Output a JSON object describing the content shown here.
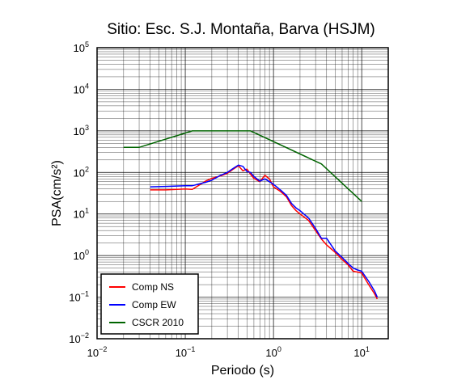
{
  "chart_data": {
    "type": "line",
    "title": "Sitio: Esc. S.J. Montaña, Barva (HSJM)",
    "xlabel": "Periodo (s)",
    "ylabel": "PSA(cm/s²)",
    "xscale": "log",
    "yscale": "log",
    "xlim": [
      0.01,
      20
    ],
    "ylim": [
      0.01,
      100000
    ],
    "grid": true,
    "legend_position": "bottom-left",
    "x_tick_labels": [
      {
        "base": "10",
        "exp": "−2",
        "value": 0.01
      },
      {
        "base": "10",
        "exp": "−1",
        "value": 0.1
      },
      {
        "base": "10",
        "exp": "0",
        "value": 1
      },
      {
        "base": "10",
        "exp": "1",
        "value": 10
      }
    ],
    "y_tick_labels": [
      {
        "base": "10",
        "exp": "−2",
        "value": 0.01
      },
      {
        "base": "10",
        "exp": "−1",
        "value": 0.1
      },
      {
        "base": "10",
        "exp": "0",
        "value": 1
      },
      {
        "base": "10",
        "exp": "1",
        "value": 10
      },
      {
        "base": "10",
        "exp": "2",
        "value": 100
      },
      {
        "base": "10",
        "exp": "3",
        "value": 1000
      },
      {
        "base": "10",
        "exp": "4",
        "value": 10000
      },
      {
        "base": "10",
        "exp": "5",
        "value": 100000
      }
    ],
    "series": [
      {
        "name": "Comp NS",
        "color": "#ff0000",
        "points": [
          [
            0.04,
            38
          ],
          [
            0.06,
            38
          ],
          [
            0.08,
            39
          ],
          [
            0.1,
            40
          ],
          [
            0.12,
            39
          ],
          [
            0.14,
            48
          ],
          [
            0.17,
            62
          ],
          [
            0.2,
            72
          ],
          [
            0.25,
            82
          ],
          [
            0.3,
            95
          ],
          [
            0.35,
            120
          ],
          [
            0.4,
            145
          ],
          [
            0.45,
            110
          ],
          [
            0.5,
            120
          ],
          [
            0.55,
            90
          ],
          [
            0.6,
            72
          ],
          [
            0.7,
            60
          ],
          [
            0.8,
            85
          ],
          [
            0.9,
            70
          ],
          [
            1.0,
            45
          ],
          [
            1.2,
            35
          ],
          [
            1.4,
            26
          ],
          [
            1.6,
            16
          ],
          [
            1.8,
            12
          ],
          [
            2.0,
            10
          ],
          [
            2.5,
            7
          ],
          [
            3.0,
            4
          ],
          [
            3.5,
            2.5
          ],
          [
            4.0,
            1.8
          ],
          [
            5.0,
            1.2
          ],
          [
            6.0,
            0.8
          ],
          [
            7.0,
            0.6
          ],
          [
            8.0,
            0.42
          ],
          [
            9.0,
            0.4
          ],
          [
            10.0,
            0.38
          ],
          [
            12.0,
            0.2
          ],
          [
            14.0,
            0.12
          ],
          [
            15.0,
            0.09
          ]
        ]
      },
      {
        "name": "Comp EW",
        "color": "#0000ff",
        "points": [
          [
            0.04,
            45
          ],
          [
            0.06,
            46
          ],
          [
            0.08,
            47
          ],
          [
            0.1,
            48
          ],
          [
            0.12,
            48
          ],
          [
            0.14,
            52
          ],
          [
            0.17,
            58
          ],
          [
            0.2,
            65
          ],
          [
            0.25,
            85
          ],
          [
            0.3,
            100
          ],
          [
            0.35,
            125
          ],
          [
            0.4,
            150
          ],
          [
            0.45,
            140
          ],
          [
            0.5,
            105
          ],
          [
            0.55,
            100
          ],
          [
            0.6,
            80
          ],
          [
            0.7,
            62
          ],
          [
            0.8,
            70
          ],
          [
            0.9,
            60
          ],
          [
            1.0,
            52
          ],
          [
            1.2,
            38
          ],
          [
            1.4,
            28
          ],
          [
            1.6,
            18
          ],
          [
            1.8,
            14
          ],
          [
            2.0,
            12
          ],
          [
            2.5,
            8
          ],
          [
            3.0,
            4.5
          ],
          [
            3.5,
            2.6
          ],
          [
            4.0,
            2.6
          ],
          [
            5.0,
            1.3
          ],
          [
            6.0,
            0.9
          ],
          [
            7.0,
            0.65
          ],
          [
            8.0,
            0.5
          ],
          [
            9.0,
            0.45
          ],
          [
            10.0,
            0.42
          ],
          [
            12.0,
            0.24
          ],
          [
            14.0,
            0.14
          ],
          [
            15.0,
            0.1
          ]
        ]
      },
      {
        "name": "CSCR 2010",
        "color": "#006400",
        "points": [
          [
            0.02,
            400
          ],
          [
            0.03,
            400
          ],
          [
            0.12,
            1000
          ],
          [
            0.55,
            1000
          ],
          [
            3.5,
            160
          ],
          [
            10.0,
            20
          ]
        ]
      }
    ]
  }
}
